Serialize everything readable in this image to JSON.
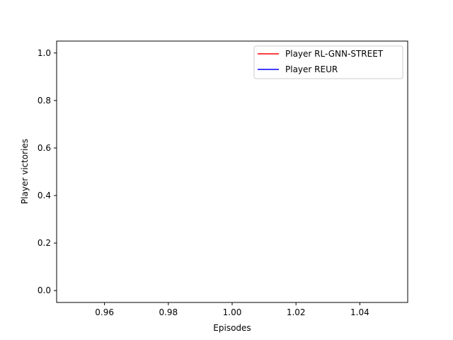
{
  "chart_data": {
    "type": "line",
    "title": "",
    "xlabel": "Episodes",
    "ylabel": "Player victories",
    "xlim": [
      0.945,
      1.055
    ],
    "ylim": [
      -0.05,
      1.05
    ],
    "x_ticks": [
      {
        "value": 0.96,
        "label": "0.96"
      },
      {
        "value": 0.98,
        "label": "0.98"
      },
      {
        "value": 1.0,
        "label": "1.00"
      },
      {
        "value": 1.02,
        "label": "1.02"
      },
      {
        "value": 1.04,
        "label": "1.04"
      }
    ],
    "y_ticks": [
      {
        "value": 0.0,
        "label": "0.0"
      },
      {
        "value": 0.2,
        "label": "0.2"
      },
      {
        "value": 0.4,
        "label": "0.4"
      },
      {
        "value": 0.6,
        "label": "0.6"
      },
      {
        "value": 0.8,
        "label": "0.8"
      },
      {
        "value": 1.0,
        "label": "1.0"
      }
    ],
    "grid": false,
    "legend_position": "top-right",
    "series": [
      {
        "name": "Player RL-GNN-STREET",
        "color": "#ff0000",
        "x": [],
        "y": []
      },
      {
        "name": "Player REUR",
        "color": "#0000ff",
        "x": [],
        "y": []
      }
    ]
  }
}
